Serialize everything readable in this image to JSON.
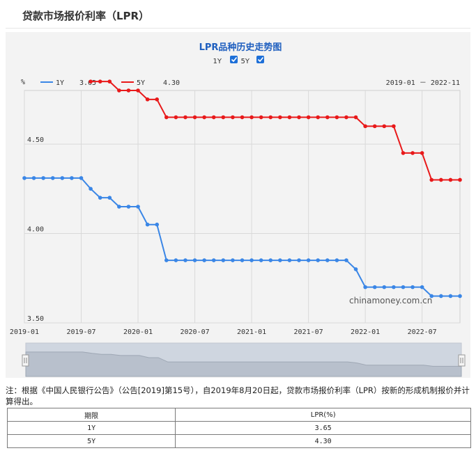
{
  "page": {
    "title": "贷款市场报价利率（LPR）"
  },
  "toggles": [
    {
      "label": "1Y",
      "checked": true
    },
    {
      "label": "5Y",
      "checked": true
    }
  ],
  "legend": [
    {
      "name": "1Y",
      "value": "3.65",
      "color": "#3a86e6"
    },
    {
      "name": "5Y",
      "value": "4.30",
      "color": "#e8191a"
    }
  ],
  "note": "注：根据《中国人民银行公告》（公告[2019]第15号），自2019年8月20日起，贷款市场报价利率（LPR）按新的形成机制报价并计算得出。",
  "table": {
    "headers": [
      "期限",
      "LPR(%)"
    ],
    "rows": [
      [
        "1Y",
        "3.65"
      ],
      [
        "5Y",
        "4.30"
      ]
    ]
  },
  "chart_data": {
    "type": "line",
    "title": "LPR品种历史走势图",
    "range_label": "2019-01 － 2022-11",
    "watermark": "chinamoney.com.cn",
    "ylabel": "%",
    "xlabel": "",
    "ylim": [
      3.5,
      4.8
    ],
    "yticks": [
      "3.50",
      "4.00",
      "4.50"
    ],
    "xticks": [
      "2019-01",
      "2019-07",
      "2020-01",
      "2020-07",
      "2021-01",
      "2021-07",
      "2022-01",
      "2022-07"
    ],
    "grid": true,
    "legend_position": "top-left",
    "x": [
      "2019-01",
      "2019-02",
      "2019-03",
      "2019-04",
      "2019-05",
      "2019-06",
      "2019-07",
      "2019-08",
      "2019-09",
      "2019-10",
      "2019-11",
      "2019-12",
      "2020-01",
      "2020-02",
      "2020-03",
      "2020-04",
      "2020-05",
      "2020-06",
      "2020-07",
      "2020-08",
      "2020-09",
      "2020-10",
      "2020-11",
      "2020-12",
      "2021-01",
      "2021-02",
      "2021-03",
      "2021-04",
      "2021-05",
      "2021-06",
      "2021-07",
      "2021-08",
      "2021-09",
      "2021-10",
      "2021-11",
      "2021-12",
      "2022-01",
      "2022-02",
      "2022-03",
      "2022-04",
      "2022-05",
      "2022-06",
      "2022-07",
      "2022-08",
      "2022-09",
      "2022-10",
      "2022-11"
    ],
    "series": [
      {
        "name": "1Y",
        "color": "#3a86e6",
        "values": [
          4.31,
          4.31,
          4.31,
          4.31,
          4.31,
          4.31,
          4.31,
          4.25,
          4.2,
          4.2,
          4.15,
          4.15,
          4.15,
          4.05,
          4.05,
          3.85,
          3.85,
          3.85,
          3.85,
          3.85,
          3.85,
          3.85,
          3.85,
          3.85,
          3.85,
          3.85,
          3.85,
          3.85,
          3.85,
          3.85,
          3.85,
          3.85,
          3.85,
          3.85,
          3.85,
          3.8,
          3.7,
          3.7,
          3.7,
          3.7,
          3.7,
          3.7,
          3.7,
          3.65,
          3.65,
          3.65,
          3.65
        ]
      },
      {
        "name": "5Y",
        "color": "#e8191a",
        "values": [
          null,
          null,
          null,
          null,
          null,
          null,
          null,
          4.85,
          4.85,
          4.85,
          4.8,
          4.8,
          4.8,
          4.75,
          4.75,
          4.65,
          4.65,
          4.65,
          4.65,
          4.65,
          4.65,
          4.65,
          4.65,
          4.65,
          4.65,
          4.65,
          4.65,
          4.65,
          4.65,
          4.65,
          4.65,
          4.65,
          4.65,
          4.65,
          4.65,
          4.65,
          4.6,
          4.6,
          4.6,
          4.6,
          4.45,
          4.45,
          4.45,
          4.3,
          4.3,
          4.3,
          4.3
        ]
      }
    ]
  }
}
